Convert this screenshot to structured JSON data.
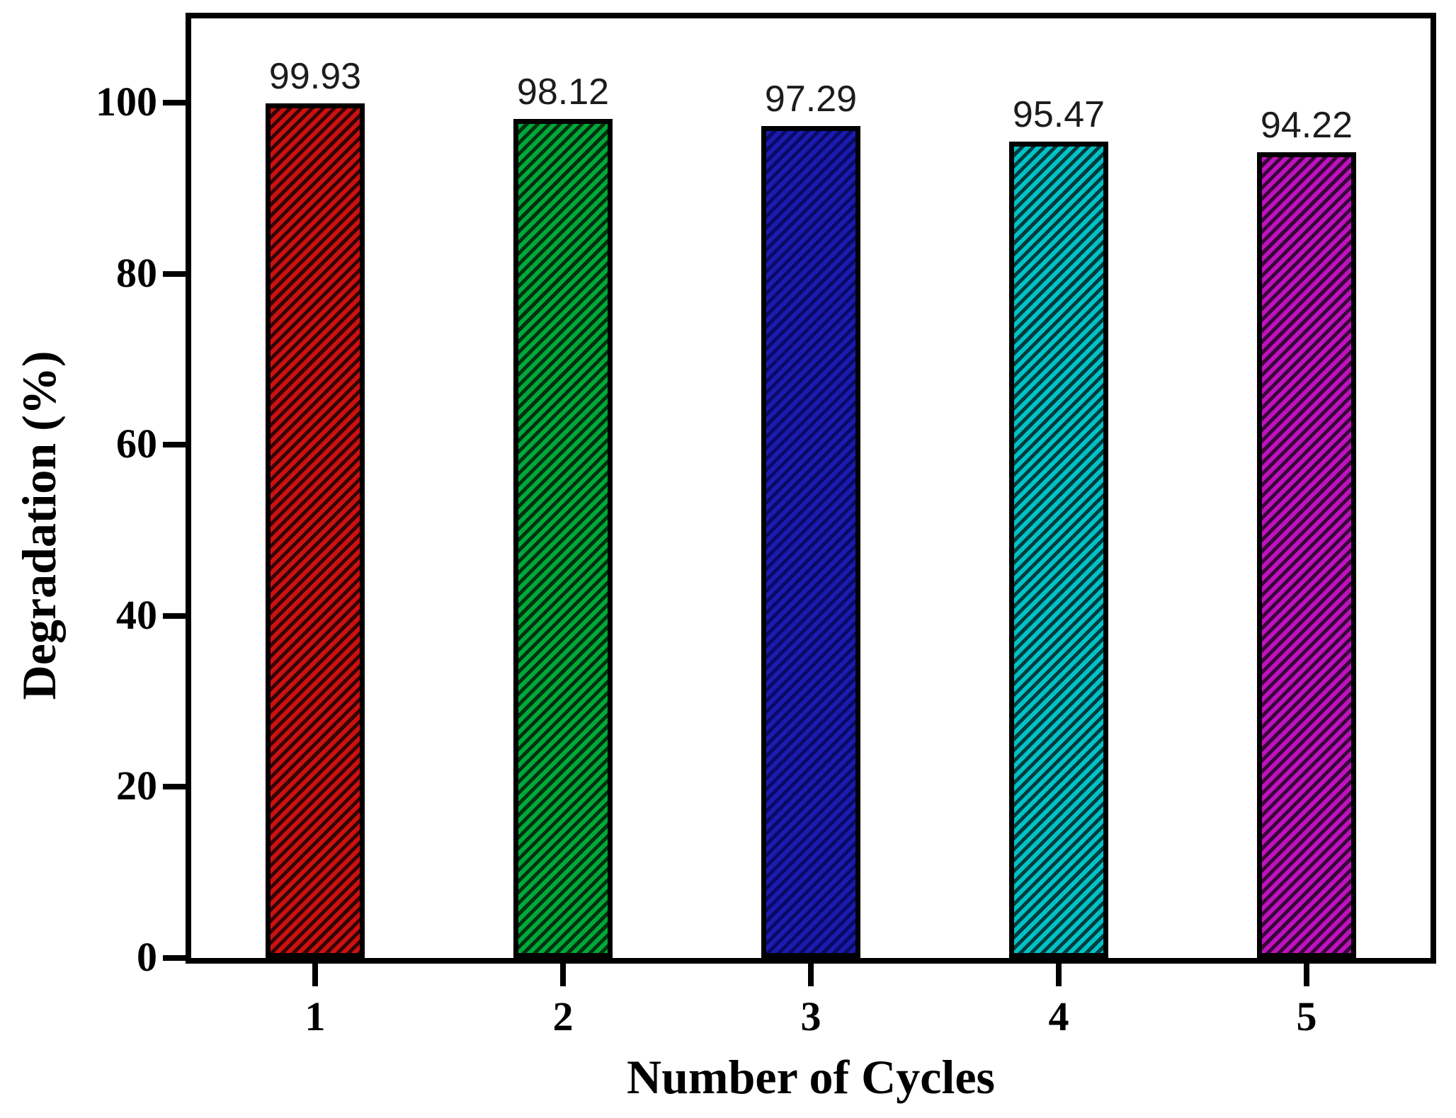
{
  "chart_data": {
    "type": "bar",
    "title": "",
    "xlabel": "Number of Cycles",
    "ylabel": "Degradation (%)",
    "categories": [
      "1",
      "2",
      "3",
      "4",
      "5"
    ],
    "values": [
      99.93,
      98.12,
      97.29,
      95.47,
      94.22
    ],
    "value_labels": [
      "99.93",
      "98.12",
      "97.29",
      "95.47",
      "94.22"
    ],
    "bar_colors": [
      {
        "name": "red",
        "main": "#CC1111",
        "shade": "#320404"
      },
      {
        "name": "green",
        "main": "#00A83A",
        "shade": "#03300E"
      },
      {
        "name": "navy",
        "main": "#1B1BB0",
        "shade": "#0A0A66"
      },
      {
        "name": "cyan",
        "main": "#00C2C6",
        "shade": "#033B3D"
      },
      {
        "name": "magenta",
        "main": "#BE12BE",
        "shade": "#380538"
      }
    ],
    "hatch_direction": "forward-diagonal",
    "edge_color": "#000000",
    "ylim": [
      0,
      100
    ],
    "yticks": [
      "0",
      "20",
      "40",
      "60",
      "80",
      "100"
    ],
    "grid": false,
    "legend_position": "none",
    "plot_background": "#FFFFFF",
    "frame": "full-box",
    "value_label_color": "#1C1C1C",
    "axis_color": "#000000"
  }
}
